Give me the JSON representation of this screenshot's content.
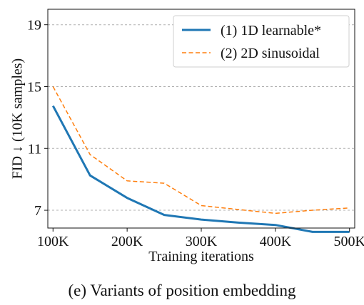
{
  "chart_data": {
    "type": "line",
    "title": "",
    "caption": "(e) Variants of position embedding",
    "xlabel": "Training iterations",
    "ylabel": "FID ↓ (10K samples)",
    "x": [
      100,
      150,
      200,
      250,
      300,
      350,
      400,
      450,
      500
    ],
    "x_unit": "K",
    "x_tick_values": [
      100,
      200,
      300,
      400,
      500
    ],
    "x_tick_labels": [
      "100K",
      "200K",
      "300K",
      "400K",
      "500K"
    ],
    "xlim": [
      93,
      507
    ],
    "y_tick_values": [
      7,
      11,
      15,
      19
    ],
    "y_tick_labels": [
      "7",
      "11",
      "15",
      "19"
    ],
    "ylim": [
      5.85,
      20.0
    ],
    "grid": "horizontal dashed",
    "legend_position": "top-right",
    "series": [
      {
        "name": "(1) 1D learnable*",
        "values": [
          13.75,
          9.25,
          7.8,
          6.7,
          6.4,
          6.2,
          6.05,
          5.6,
          5.6
        ],
        "color": "#1f77b4",
        "style": "solid"
      },
      {
        "name": "(2) 2D sinusoidal",
        "values": [
          15.0,
          10.6,
          8.9,
          8.75,
          7.3,
          7.05,
          6.8,
          7.0,
          7.15
        ],
        "color": "#ff7f0e",
        "style": "dashed"
      }
    ]
  }
}
